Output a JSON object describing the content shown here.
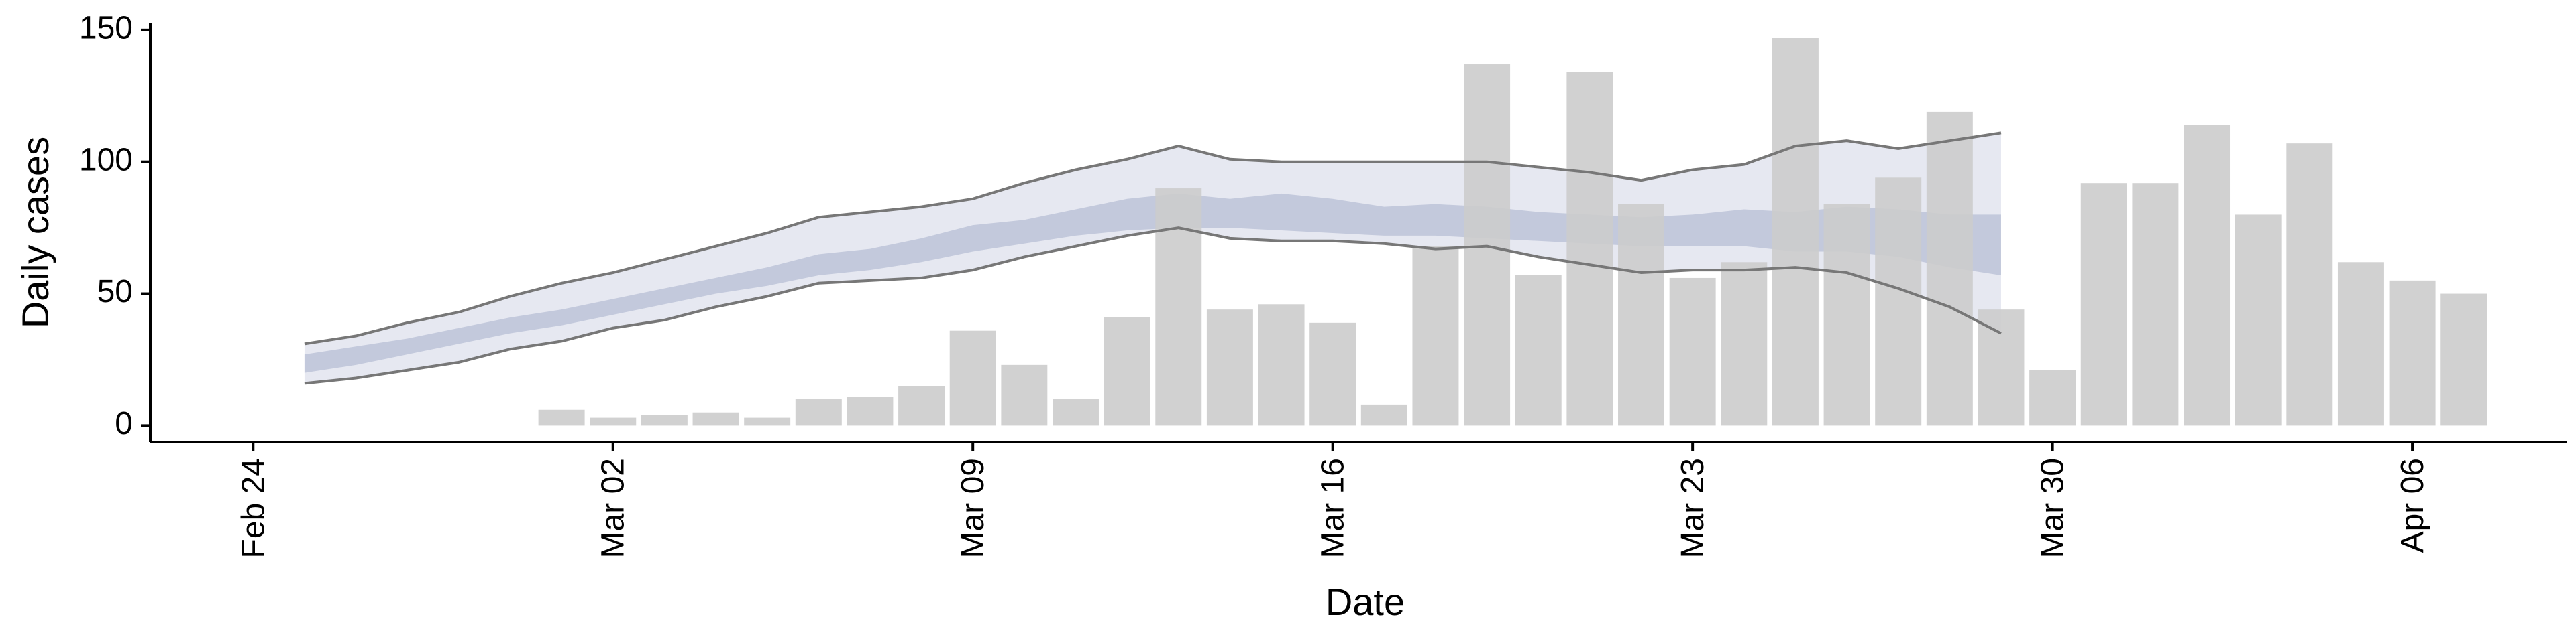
{
  "chart_data": {
    "type": "bar",
    "x_label": "Date",
    "y_label": "Daily cases",
    "xlim": [
      "Feb 22",
      "Apr 09"
    ],
    "ylim": [
      -6.25,
      152.5
    ],
    "xticks": [
      "Feb 24",
      "Mar 02",
      "Mar 09",
      "Mar 16",
      "Mar 23",
      "Mar 30",
      "Apr 06"
    ],
    "yticks": [
      0,
      50,
      100,
      150
    ],
    "color": "#cccccc",
    "x": [
      "Mar 01",
      "Mar 02",
      "Mar 03",
      "Mar 04",
      "Mar 05",
      "Mar 06",
      "Mar 07",
      "Mar 08",
      "Mar 09",
      "Mar 10",
      "Mar 11",
      "Mar 12",
      "Mar 13",
      "Mar 14",
      "Mar 15",
      "Mar 16",
      "Mar 17",
      "Mar 18",
      "Mar 19",
      "Mar 20",
      "Mar 21",
      "Mar 22",
      "Mar 23",
      "Mar 24",
      "Mar 25",
      "Mar 26",
      "Mar 27",
      "Mar 28",
      "Mar 29",
      "Mar 30",
      "Mar 31",
      "Apr 01",
      "Apr 02",
      "Apr 03",
      "Apr 04",
      "Apr 05",
      "Apr 06",
      "Apr 07"
    ],
    "values": [
      6,
      3,
      4,
      5,
      3,
      10,
      11,
      15,
      36,
      23,
      10,
      41,
      90,
      44,
      46,
      39,
      8,
      68,
      137,
      57,
      134,
      84,
      56,
      62,
      147,
      84,
      94,
      119,
      44,
      21,
      92,
      92,
      114,
      80,
      107,
      62,
      55,
      50
    ],
    "band_x": [
      "Feb 25",
      "Feb 26",
      "Feb 27",
      "Feb 28",
      "Feb 29",
      "Mar 01",
      "Mar 02",
      "Mar 03",
      "Mar 04",
      "Mar 05",
      "Mar 06",
      "Mar 07",
      "Mar 08",
      "Mar 09",
      "Mar 10",
      "Mar 11",
      "Mar 12",
      "Mar 13",
      "Mar 14",
      "Mar 15",
      "Mar 16",
      "Mar 17",
      "Mar 18",
      "Mar 19",
      "Mar 20",
      "Mar 21",
      "Mar 22",
      "Mar 23",
      "Mar 24",
      "Mar 25",
      "Mar 26",
      "Mar 27",
      "Mar 28",
      "Mar 29"
    ],
    "outer_upper": [
      31,
      34,
      39,
      43,
      49,
      54,
      58,
      63,
      68,
      73,
      79,
      81,
      83,
      86,
      92,
      97,
      101,
      106,
      101,
      100,
      100,
      100,
      100,
      100,
      98,
      96,
      93,
      97,
      99,
      106,
      108,
      105,
      108,
      111
    ],
    "outer_lower": [
      16,
      18,
      21,
      24,
      29,
      32,
      37,
      40,
      45,
      49,
      54,
      55,
      56,
      59,
      64,
      68,
      72,
      75,
      71,
      70,
      70,
      69,
      67,
      68,
      64,
      61,
      58,
      59,
      59,
      60,
      58,
      52,
      45,
      35
    ],
    "inner_upper": [
      27,
      30,
      33,
      37,
      41,
      44,
      48,
      52,
      56,
      60,
      65,
      67,
      71,
      76,
      78,
      82,
      86,
      88,
      86,
      88,
      86,
      83,
      84,
      83,
      81,
      80,
      79,
      80,
      82,
      81,
      83,
      82,
      80,
      80
    ],
    "inner_lower": [
      20,
      23,
      27,
      31,
      35,
      38,
      42,
      46,
      50,
      53,
      57,
      59,
      62,
      66,
      69,
      72,
      74,
      75,
      75,
      74,
      73,
      72,
      72,
      71,
      70,
      69,
      68,
      68,
      68,
      66,
      66,
      64,
      60,
      57
    ],
    "outer_color": "#e6e8f1",
    "inner_color": "#c3c9dc",
    "line_color": "#777777"
  }
}
